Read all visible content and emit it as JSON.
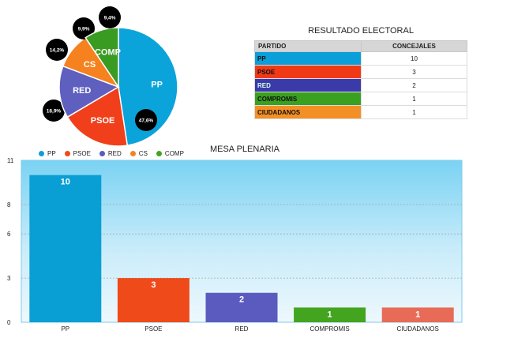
{
  "table": {
    "title": "RESULTADO ELECTORAL",
    "headers": [
      "PARTIDO",
      "CONCEJALES"
    ],
    "rows": [
      {
        "party": "PP",
        "seats": "10",
        "color": "#0a9fd8"
      },
      {
        "party": "PSOE",
        "seats": "3",
        "color": "#f03a17"
      },
      {
        "party": "RED",
        "seats": "2",
        "color": "#3a3aa8"
      },
      {
        "party": "COMPROMIS",
        "seats": "1",
        "color": "#3aa020"
      },
      {
        "party": "CIUDADANOS",
        "seats": "1",
        "color": "#f39025"
      }
    ]
  },
  "chart_data": [
    {
      "type": "pie",
      "title": "",
      "slices": [
        {
          "label": "PP",
          "value": 47.6,
          "pct_label": "47,6%",
          "color": "#0aa4da"
        },
        {
          "label": "PSOE",
          "value": 18.9,
          "pct_label": "18,9%",
          "color": "#f03f1a"
        },
        {
          "label": "RED",
          "value": 14.2,
          "pct_label": "14,2%",
          "color": "#5f5fbf"
        },
        {
          "label": "CS",
          "value": 9.9,
          "pct_label": "9,9%",
          "color": "#f5821f"
        },
        {
          "label": "COMP",
          "value": 9.4,
          "pct_label": "9,4%",
          "color": "#3a9b22"
        }
      ]
    },
    {
      "type": "bar",
      "title": "MESA PLENARIA",
      "categories": [
        "PP",
        "PSOE",
        "RED",
        "COMPROMIS",
        "CIUDADANOS"
      ],
      "values": [
        10,
        3,
        2,
        1,
        1
      ],
      "colors": [
        "#0a9fd4",
        "#ef4a1a",
        "#5b5bbf",
        "#43a41f",
        "#e86b58"
      ],
      "legend": [
        {
          "label": "PP",
          "color": "#0a9fd4"
        },
        {
          "label": "PSOE",
          "color": "#ef4a1a"
        },
        {
          "label": "RED",
          "color": "#5b5bbf"
        },
        {
          "label": "CS",
          "color": "#f5821f"
        },
        {
          "label": "COMP",
          "color": "#43a41f"
        }
      ],
      "yticks": [
        0,
        3,
        6,
        8,
        11
      ],
      "ylim": [
        0,
        11
      ],
      "xlabel": "",
      "ylabel": ""
    }
  ]
}
